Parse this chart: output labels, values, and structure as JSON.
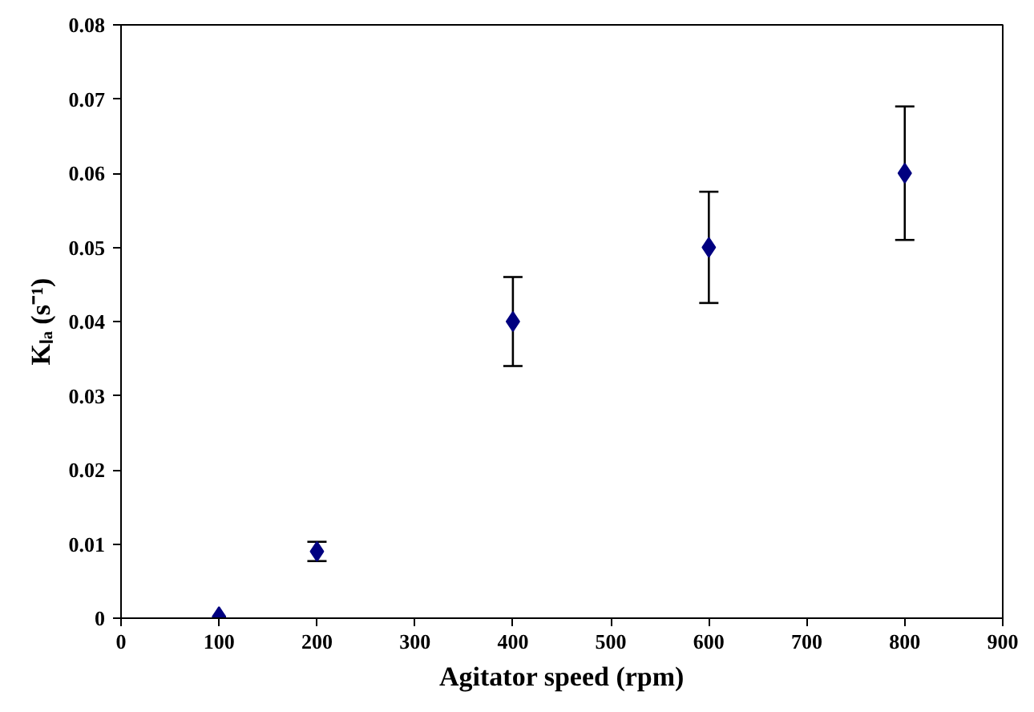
{
  "chart_data": {
    "type": "scatter",
    "xlabel": "Agitator speed (rpm)",
    "ylabel": "Kₗₐ (s⁻¹)",
    "x": [
      100,
      200,
      400,
      600,
      800
    ],
    "series": [
      {
        "color": "#000080",
        "values": [
          0.0002,
          0.009,
          0.04,
          0.05,
          0.06
        ],
        "errors": [
          null,
          [
            0.0077,
            0.0103
          ],
          [
            0.034,
            0.046
          ],
          [
            0.0425,
            0.0575
          ],
          [
            0.051,
            0.069
          ]
        ]
      }
    ],
    "xlim": [
      0,
      900
    ],
    "xticks": [
      0,
      100,
      200,
      300,
      400,
      500,
      600,
      700,
      800,
      900
    ],
    "ylim": [
      0,
      0.08
    ],
    "yticks": [
      0,
      0.01,
      0.02,
      0.03,
      0.04,
      0.05,
      0.06,
      0.07,
      0.08
    ],
    "marker": "diamond",
    "grid": false
  }
}
